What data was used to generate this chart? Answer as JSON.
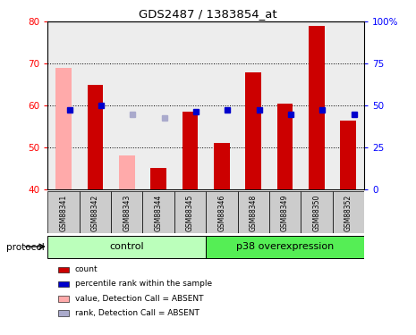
{
  "title": "GDS2487 / 1383854_at",
  "samples": [
    "GSM88341",
    "GSM88342",
    "GSM88343",
    "GSM88344",
    "GSM88345",
    "GSM88346",
    "GSM88348",
    "GSM88349",
    "GSM88350",
    "GSM88352"
  ],
  "bar_values": [
    69.0,
    65.0,
    48.0,
    45.0,
    58.5,
    51.0,
    68.0,
    60.5,
    79.0,
    56.5
  ],
  "bar_absent": [
    true,
    false,
    true,
    false,
    false,
    false,
    false,
    false,
    false,
    false
  ],
  "rank_values": [
    59.0,
    60.0,
    58.0,
    57.0,
    58.5,
    59.0,
    59.0,
    58.0,
    59.0,
    58.0
  ],
  "rank_absent": [
    false,
    false,
    true,
    true,
    false,
    false,
    false,
    false,
    false,
    false
  ],
  "ylim": [
    40,
    80
  ],
  "y2lim": [
    0,
    100
  ],
  "yticks": [
    40,
    50,
    60,
    70,
    80
  ],
  "y2ticks": [
    0,
    25,
    50,
    75,
    100
  ],
  "y2ticklabels": [
    "0",
    "25",
    "50",
    "75",
    "100%"
  ],
  "control_label": "control",
  "p38_label": "p38 overexpression",
  "protocol_label": "protocol",
  "color_bar_red": "#cc0000",
  "color_bar_pink": "#ffaaaa",
  "color_rank_blue": "#0000cc",
  "color_rank_lightblue": "#aaaacc",
  "bar_width": 0.5,
  "rank_marker_size": 5,
  "bg_color_control": "#bbffbb",
  "bg_color_p38": "#55ee55",
  "bg_gray": "#cccccc",
  "legend_items": [
    {
      "label": "count",
      "color": "#cc0000"
    },
    {
      "label": "percentile rank within the sample",
      "color": "#0000cc"
    },
    {
      "label": "value, Detection Call = ABSENT",
      "color": "#ffaaaa"
    },
    {
      "label": "rank, Detection Call = ABSENT",
      "color": "#aaaacc"
    }
  ]
}
